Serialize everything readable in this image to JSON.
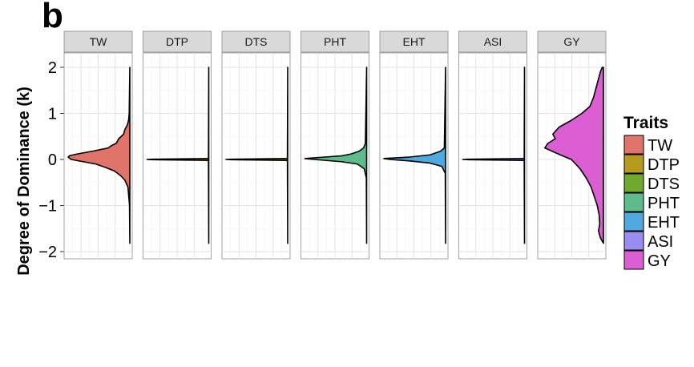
{
  "figure": {
    "panel_letter": "b"
  },
  "chart_data": {
    "type": "violin",
    "ylabel": "Degree of Dominance (k)",
    "xlabel": "",
    "ylim": [
      -2,
      2
    ],
    "yticks": [
      -2,
      -1,
      0,
      1,
      2
    ],
    "ytick_labels": [
      "−2",
      "−1",
      "0",
      "1",
      "2"
    ],
    "grid": true,
    "legend": {
      "title": "Traits",
      "placement": "right"
    },
    "series": [
      {
        "name": "TW",
        "color": "#E0736A",
        "range": [
          -1.82,
          2.0
        ],
        "density": [
          [
            -1.82,
            0
          ],
          [
            -1.0,
            0.005
          ],
          [
            -0.6,
            0.03
          ],
          [
            -0.45,
            0.08
          ],
          [
            -0.35,
            0.15
          ],
          [
            -0.25,
            0.25
          ],
          [
            -0.18,
            0.38
          ],
          [
            -0.1,
            0.55
          ],
          [
            -0.05,
            0.75
          ],
          [
            0.0,
            0.95
          ],
          [
            0.05,
            1.0
          ],
          [
            0.08,
            0.98
          ],
          [
            0.12,
            0.85
          ],
          [
            0.18,
            0.6
          ],
          [
            0.25,
            0.35
          ],
          [
            0.3,
            0.3
          ],
          [
            0.35,
            0.22
          ],
          [
            0.45,
            0.18
          ],
          [
            0.55,
            0.1
          ],
          [
            0.65,
            0.08
          ],
          [
            0.75,
            0.04
          ],
          [
            0.85,
            0.02
          ],
          [
            1.0,
            0.01
          ],
          [
            2.0,
            0
          ]
        ]
      },
      {
        "name": "DTP",
        "color": "#B79B1F",
        "range": [
          -1.82,
          2.0
        ],
        "density": [
          [
            -1.82,
            0
          ],
          [
            -0.02,
            0.005
          ],
          [
            -0.005,
            0.9
          ],
          [
            0.0,
            1.0
          ],
          [
            0.005,
            0.9
          ],
          [
            0.02,
            0.005
          ],
          [
            2.0,
            0
          ]
        ]
      },
      {
        "name": "DTS",
        "color": "#6FA82C",
        "range": [
          -1.82,
          2.0
        ],
        "density": [
          [
            -1.82,
            0
          ],
          [
            -0.02,
            0.005
          ],
          [
            -0.005,
            0.9
          ],
          [
            0.0,
            1.0
          ],
          [
            0.005,
            0.9
          ],
          [
            0.02,
            0.005
          ],
          [
            2.0,
            0
          ]
        ]
      },
      {
        "name": "PHT",
        "color": "#5DBB8C",
        "range": [
          -1.82,
          2.0
        ],
        "density": [
          [
            -1.82,
            0
          ],
          [
            -0.4,
            0.005
          ],
          [
            -0.2,
            0.04
          ],
          [
            -0.1,
            0.15
          ],
          [
            -0.05,
            0.4
          ],
          [
            0.0,
            0.85
          ],
          [
            0.02,
            1.0
          ],
          [
            0.05,
            0.7
          ],
          [
            0.08,
            0.4
          ],
          [
            0.12,
            0.25
          ],
          [
            0.18,
            0.12
          ],
          [
            0.25,
            0.05
          ],
          [
            0.35,
            0.02
          ],
          [
            2.0,
            0
          ]
        ]
      },
      {
        "name": "EHT",
        "color": "#4FA8E0",
        "range": [
          -1.82,
          2.0
        ],
        "density": [
          [
            -1.82,
            0
          ],
          [
            -0.3,
            0.005
          ],
          [
            -0.15,
            0.06
          ],
          [
            -0.08,
            0.25
          ],
          [
            -0.03,
            0.6
          ],
          [
            0.0,
            0.9
          ],
          [
            0.02,
            1.0
          ],
          [
            0.05,
            0.6
          ],
          [
            0.1,
            0.25
          ],
          [
            0.18,
            0.08
          ],
          [
            0.25,
            0.02
          ],
          [
            2.0,
            0
          ]
        ]
      },
      {
        "name": "ASI",
        "color": "#9B8CF2",
        "range": [
          -1.82,
          2.0
        ],
        "density": [
          [
            -1.82,
            0
          ],
          [
            -0.02,
            0.005
          ],
          [
            -0.005,
            0.9
          ],
          [
            0.0,
            1.0
          ],
          [
            0.005,
            0.9
          ],
          [
            0.02,
            0.005
          ],
          [
            2.0,
            0
          ]
        ]
      },
      {
        "name": "GY",
        "color": "#DB5FD3",
        "range": [
          -1.82,
          2.0
        ],
        "density": [
          [
            -1.82,
            0
          ],
          [
            -1.7,
            0.05
          ],
          [
            -1.55,
            0.08
          ],
          [
            -1.4,
            0.06
          ],
          [
            -1.2,
            0.07
          ],
          [
            -1.0,
            0.1
          ],
          [
            -0.8,
            0.15
          ],
          [
            -0.6,
            0.2
          ],
          [
            -0.4,
            0.28
          ],
          [
            -0.2,
            0.38
          ],
          [
            0.0,
            0.52
          ],
          [
            0.1,
            0.7
          ],
          [
            0.25,
            0.95
          ],
          [
            0.35,
            0.9
          ],
          [
            0.45,
            0.78
          ],
          [
            0.55,
            0.82
          ],
          [
            0.7,
            0.72
          ],
          [
            0.85,
            0.52
          ],
          [
            1.0,
            0.35
          ],
          [
            1.15,
            0.22
          ],
          [
            1.35,
            0.16
          ],
          [
            1.55,
            0.12
          ],
          [
            1.75,
            0.08
          ],
          [
            1.9,
            0.05
          ],
          [
            2.0,
            0.02
          ]
        ]
      }
    ]
  }
}
